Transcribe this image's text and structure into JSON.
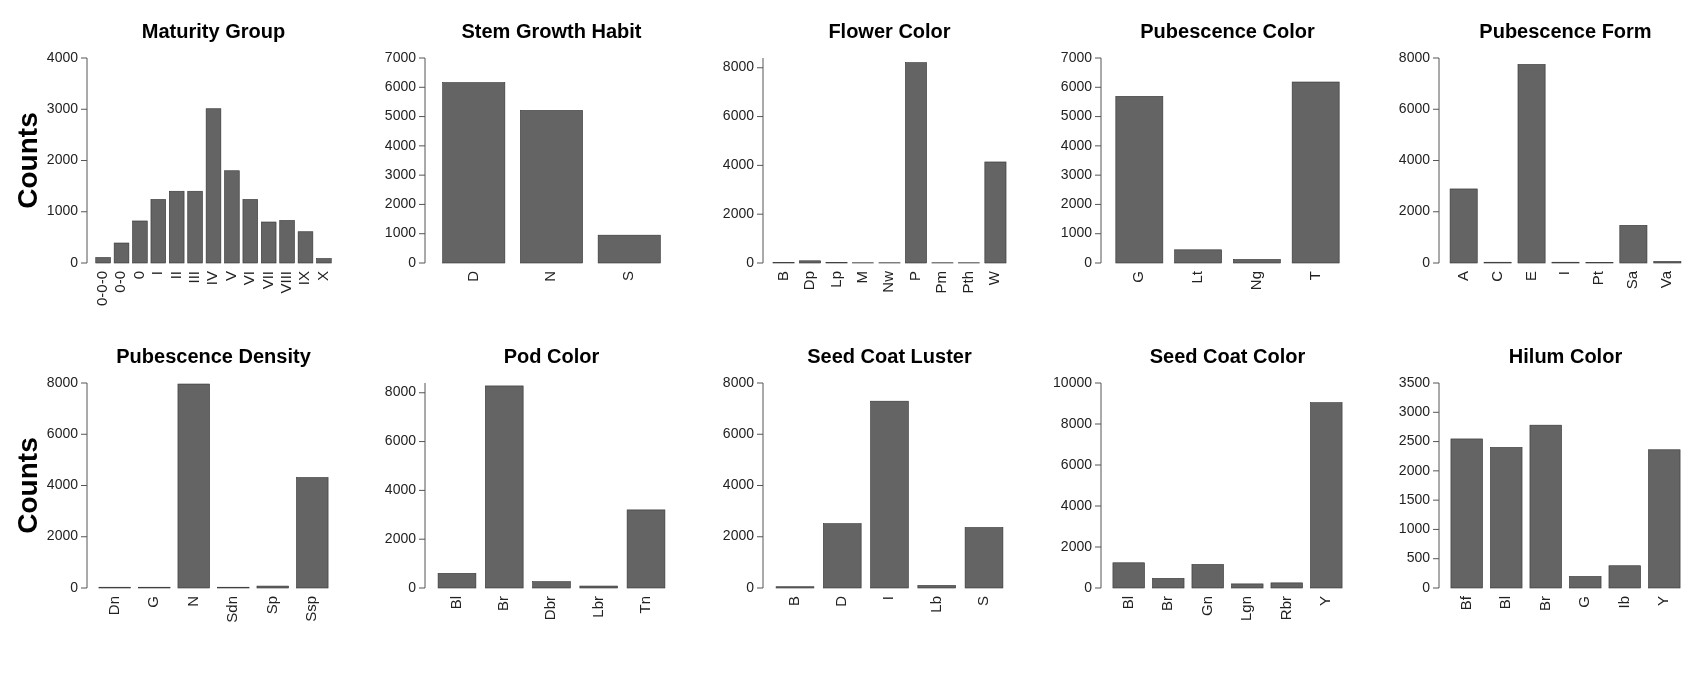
{
  "chart_data": [
    {
      "type": "bar",
      "title": "Maturity Group",
      "ylabel": "Counts",
      "categories": [
        "0-0-0",
        "0-0",
        "0",
        "I",
        "II",
        "III",
        "IV",
        "V",
        "VI",
        "VII",
        "VIII",
        "IX",
        "X"
      ],
      "values": [
        107,
        390,
        820,
        1240,
        1400,
        1400,
        3010,
        1800,
        1240,
        800,
        830,
        610,
        87
      ],
      "color": "#646464",
      "ylim": [
        0,
        4000
      ],
      "yticks": [
        0,
        1000,
        2000,
        3000,
        4000
      ]
    },
    {
      "type": "bar",
      "title": "Stem Growth Habit",
      "categories": [
        "D",
        "N",
        "S"
      ],
      "values": [
        6160,
        5210,
        950
      ],
      "color": "#646464",
      "ylim": [
        0,
        7000
      ],
      "yticks": [
        0,
        1000,
        2000,
        3000,
        4000,
        5000,
        6000,
        7000
      ]
    },
    {
      "type": "bar",
      "title": "Flower Color",
      "categories": [
        "B",
        "Dp",
        "Lp",
        "M",
        "Nw",
        "P",
        "Pm",
        "Pth",
        "W"
      ],
      "values": [
        15,
        90,
        15,
        10,
        10,
        8210,
        10,
        10,
        4140
      ],
      "color": "#646464",
      "ylim": [
        0,
        8400
      ],
      "yticks": [
        0,
        2000,
        4000,
        6000,
        8000
      ]
    },
    {
      "type": "bar",
      "title": "Pubescence Color",
      "categories": [
        "G",
        "Lt",
        "Ng",
        "T"
      ],
      "values": [
        5690,
        450,
        120,
        6180
      ],
      "color": "#646464",
      "ylim": [
        0,
        7000
      ],
      "yticks": [
        0,
        1000,
        2000,
        3000,
        4000,
        5000,
        6000,
        7000
      ]
    },
    {
      "type": "bar",
      "title": "Pubescence Form",
      "categories": [
        "A",
        "C",
        "E",
        "I",
        "Pt",
        "Sa",
        "Va"
      ],
      "values": [
        2890,
        30,
        7750,
        30,
        15,
        1470,
        60
      ],
      "color": "#646464",
      "ylim": [
        0,
        8000
      ],
      "yticks": [
        0,
        2000,
        4000,
        6000,
        8000
      ]
    },
    {
      "type": "bar",
      "title": "Pubescence Density",
      "ylabel": "Counts",
      "categories": [
        "Dn",
        "G",
        "N",
        "Sdn",
        "Sp",
        "Ssp"
      ],
      "values": [
        30,
        30,
        7960,
        30,
        75,
        4310
      ],
      "color": "#646464",
      "ylim": [
        0,
        8000
      ],
      "yticks": [
        0,
        2000,
        4000,
        6000,
        8000
      ]
    },
    {
      "type": "bar",
      "title": "Pod Color",
      "categories": [
        "Bl",
        "Br",
        "Dbr",
        "Lbr",
        "Tn"
      ],
      "values": [
        600,
        8280,
        260,
        80,
        3200
      ],
      "color": "#646464",
      "ylim": [
        0,
        8400
      ],
      "yticks": [
        0,
        2000,
        4000,
        6000,
        8000
      ]
    },
    {
      "type": "bar",
      "title": "Seed Coat Luster",
      "categories": [
        "B",
        "D",
        "I",
        "Lb",
        "S"
      ],
      "values": [
        50,
        2510,
        7290,
        100,
        2360
      ],
      "color": "#646464",
      "ylim": [
        0,
        8000
      ],
      "yticks": [
        0,
        2000,
        4000,
        6000,
        8000
      ]
    },
    {
      "type": "bar",
      "title": "Seed Coat Color",
      "categories": [
        "Bl",
        "Br",
        "Gn",
        "Lgn",
        "Rbr",
        "Y"
      ],
      "values": [
        1230,
        470,
        1150,
        200,
        250,
        9040
      ],
      "color": "#646464",
      "ylim": [
        0,
        10000
      ],
      "yticks": [
        0,
        2000,
        4000,
        6000,
        8000,
        10000
      ]
    },
    {
      "type": "bar",
      "title": "Hilum Color",
      "categories": [
        "Bf",
        "Bl",
        "Br",
        "G",
        "Ib",
        "Y"
      ],
      "values": [
        2545,
        2400,
        2780,
        197,
        380,
        2360
      ],
      "color": "#646464",
      "ylim": [
        0,
        3500
      ],
      "yticks": [
        0,
        500,
        1000,
        1500,
        2000,
        2500,
        3000,
        3500
      ]
    }
  ]
}
